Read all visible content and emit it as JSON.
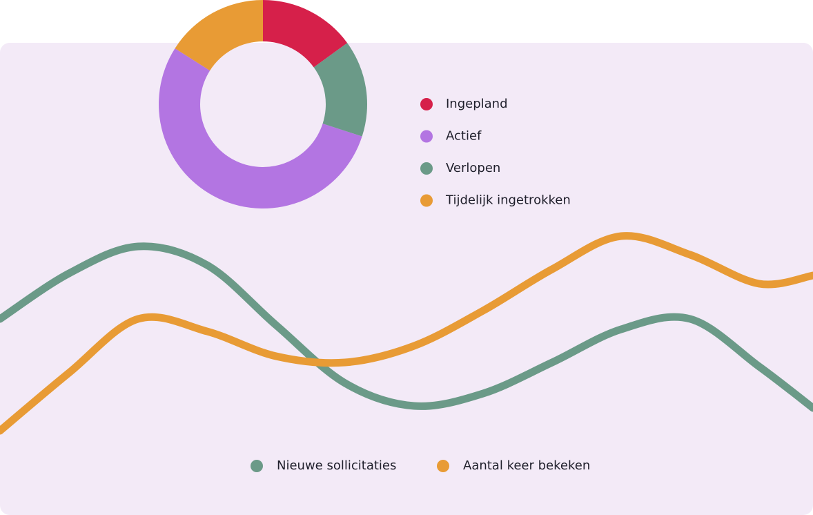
{
  "chart_data": [
    {
      "type": "pie",
      "donut": true,
      "categories": [
        "Ingepland",
        "Actief",
        "Verlopen",
        "Tijdelijk ingetrokken"
      ],
      "values": [
        15,
        54,
        15,
        16
      ],
      "slice_order": [
        0,
        2,
        1,
        3
      ],
      "colors": [
        "#d6204a",
        "#b375e2",
        "#6b9a88",
        "#e89b35"
      ]
    },
    {
      "type": "line",
      "x": [
        0,
        100,
        200,
        300,
        400,
        500,
        600,
        700,
        800,
        900,
        1000,
        1100,
        1178
      ],
      "xlim": [
        0,
        1178
      ],
      "ylim": [
        0,
        100
      ],
      "series": [
        {
          "name": "Nieuwe sollicitaties",
          "color": "#6b9a88",
          "values": [
            56,
            78,
            91,
            82,
            53,
            25,
            14,
            20,
            35,
            51,
            56,
            33,
            13
          ]
        },
        {
          "name": "Aantal keer bekeken",
          "color": "#e89b35",
          "values": [
            2,
            30,
            56,
            50,
            38,
            35,
            43,
            60,
            80,
            96,
            87,
            73,
            77
          ]
        }
      ]
    }
  ]
}
